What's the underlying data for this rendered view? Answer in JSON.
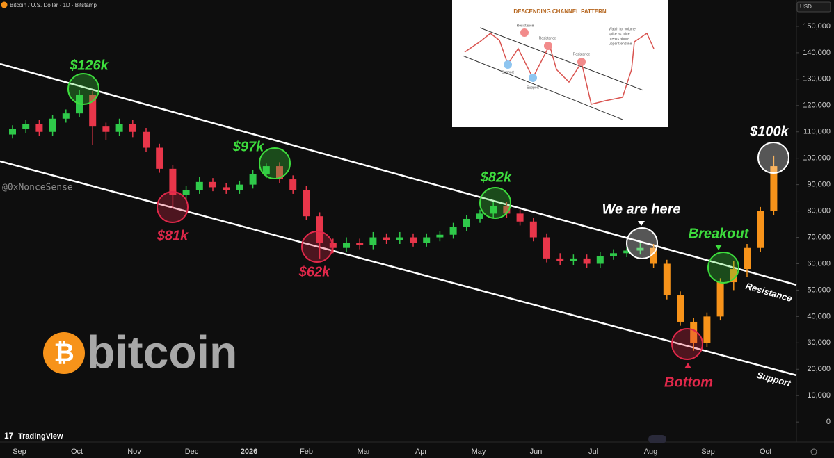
{
  "header": "Bitcoin / U.S. Dollar · 1D · Bitstamp",
  "currency": "USD",
  "watermark": "@0xNonceSense",
  "logo_text": "bitcoin",
  "brand": "TradingView",
  "trendlines": {
    "resistance": "Resistance",
    "support": "Support"
  },
  "inset": {
    "title": "DESCENDING CHANNEL PATTERN",
    "labels": [
      "Resistance",
      "Resistance",
      "Resistance",
      "Support",
      "Support"
    ],
    "note": [
      "Watch for volume",
      "spike as price",
      "breaks above",
      "upper trendline"
    ]
  },
  "chart_data": {
    "type": "candlestick",
    "categories": [
      "Sep",
      "Oct",
      "Nov",
      "Dec",
      "2026",
      "Feb",
      "Mar",
      "Apr",
      "May",
      "Jun",
      "Jul",
      "Aug",
      "Sep",
      "Oct"
    ],
    "ylim": [
      -7600,
      160000
    ],
    "yticks": [
      {
        "value": 0,
        "label": "0"
      },
      {
        "value": 10000,
        "label": "10,000"
      },
      {
        "value": 20000,
        "label": "20,000"
      },
      {
        "value": 30000,
        "label": "30,000"
      },
      {
        "value": 40000,
        "label": "40,000"
      },
      {
        "value": 50000,
        "label": "50,000"
      },
      {
        "value": 60000,
        "label": "60,000"
      },
      {
        "value": 70000,
        "label": "70,000"
      },
      {
        "value": 80000,
        "label": "80,000"
      },
      {
        "value": 90000,
        "label": "90,000"
      },
      {
        "value": 100000,
        "label": "100,000"
      },
      {
        "value": 110000,
        "label": "110,000"
      },
      {
        "value": 120000,
        "label": "120,000"
      },
      {
        "value": 130000,
        "label": "130,000"
      },
      {
        "value": 140000,
        "label": "140,000"
      },
      {
        "value": 150000,
        "label": "150,000"
      }
    ],
    "series": [
      {
        "color_up": "#2fc94a",
        "color_down": "#e8364a",
        "ohlc": [
          [
            109000,
            112500,
            107500,
            111000
          ],
          [
            111000,
            114500,
            109500,
            113000
          ],
          [
            113000,
            114500,
            108500,
            110000
          ],
          [
            110000,
            116500,
            108500,
            115000
          ],
          [
            115000,
            118500,
            113500,
            117000
          ],
          [
            117000,
            126000,
            115500,
            124000
          ],
          [
            124000,
            125500,
            105000,
            112000
          ],
          [
            112000,
            113500,
            107000,
            110000
          ],
          [
            110000,
            115000,
            108500,
            113000
          ],
          [
            113000,
            114500,
            108000,
            110000
          ],
          [
            110000,
            111500,
            102500,
            104000
          ],
          [
            104000,
            105500,
            94500,
            96000
          ],
          [
            96000,
            97500,
            81000,
            86000
          ],
          [
            86000,
            89500,
            84000,
            88000
          ],
          [
            88000,
            93000,
            86500,
            91000
          ],
          [
            91000,
            92500,
            87500,
            89000
          ],
          [
            89000,
            90500,
            86500,
            88000
          ],
          [
            88000,
            91500,
            86500,
            90000
          ],
          [
            90000,
            95500,
            88500,
            94000
          ],
          [
            94000,
            98000,
            92500,
            97000
          ],
          [
            97000,
            98500,
            90500,
            92000
          ],
          [
            92000,
            93500,
            86500,
            88000
          ],
          [
            88000,
            89500,
            76500,
            78000
          ],
          [
            78000,
            79500,
            62000,
            68000
          ],
          [
            68000,
            69500,
            64000,
            66000
          ],
          [
            66000,
            70000,
            64500,
            68000
          ],
          [
            68000,
            69500,
            65500,
            67000
          ],
          [
            67000,
            72000,
            65500,
            70000
          ],
          [
            70000,
            71500,
            67500,
            69000
          ],
          [
            69000,
            72000,
            67500,
            70000
          ],
          [
            70000,
            71500,
            66500,
            68000
          ],
          [
            68000,
            71500,
            66500,
            70000
          ],
          [
            70000,
            72500,
            68500,
            71000
          ],
          [
            71000,
            75500,
            69500,
            74000
          ],
          [
            74000,
            78500,
            72500,
            77000
          ],
          [
            77000,
            80500,
            75500,
            79000
          ],
          [
            79000,
            83500,
            77500,
            82000
          ],
          [
            82000,
            83500,
            77500,
            79000
          ],
          [
            79000,
            80500,
            74500,
            76000
          ],
          [
            76000,
            77500,
            68500,
            70000
          ],
          [
            70000,
            71500,
            60500,
            62000
          ],
          [
            62000,
            64000,
            59500,
            61000
          ],
          [
            61000,
            63500,
            59500,
            62000
          ],
          [
            62000,
            63500,
            58500,
            60000
          ],
          [
            60000,
            64500,
            58500,
            63000
          ],
          [
            63000,
            65500,
            61500,
            64000
          ],
          [
            64000,
            66500,
            62500,
            65000
          ],
          [
            65000,
            68000,
            63500,
            66000
          ]
        ]
      },
      {
        "color_up": "#f7931a",
        "color_down": "#f7931a",
        "ohlc": [
          [
            66000,
            67500,
            58500,
            60000
          ],
          [
            60000,
            61500,
            46500,
            48000
          ],
          [
            48000,
            49500,
            36500,
            38000
          ],
          [
            38000,
            39500,
            27000,
            30000
          ],
          [
            30000,
            41500,
            28500,
            40000
          ],
          [
            40000,
            54500,
            38500,
            53000
          ],
          [
            53000,
            61000,
            50000,
            58000
          ],
          [
            58000,
            67500,
            55000,
            66000
          ],
          [
            66000,
            81500,
            64500,
            80000
          ],
          [
            80000,
            101000,
            78500,
            97000
          ]
        ]
      }
    ],
    "annotations": [
      {
        "text": "$126k",
        "color": "#3ddc3d"
      },
      {
        "text": "$81k",
        "color": "#e0284a"
      },
      {
        "text": "$97k",
        "color": "#3ddc3d"
      },
      {
        "text": "$62k",
        "color": "#e0284a"
      },
      {
        "text": "$82k",
        "color": "#3ddc3d"
      },
      {
        "text": "We are here",
        "color": "#ffffff"
      },
      {
        "text": "Breakout",
        "color": "#3ddc3d"
      },
      {
        "text": "Bottom",
        "color": "#e0284a"
      },
      {
        "text": "$100k",
        "color": "#ffffff"
      }
    ]
  }
}
